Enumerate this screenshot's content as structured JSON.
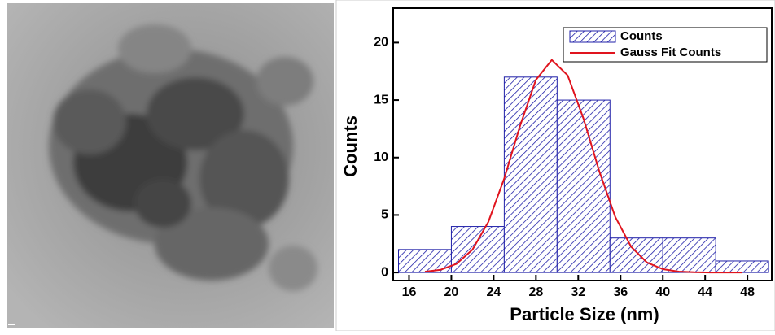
{
  "chart_data": {
    "type": "histogram",
    "bins": [
      15,
      20,
      25,
      30,
      35,
      40,
      45,
      50
    ],
    "series": [
      {
        "name": "Counts",
        "type": "histogram",
        "color": "#1f1fa8",
        "values": [
          2,
          4,
          17,
          15,
          3,
          3,
          1
        ]
      },
      {
        "name": "Gauss Fit Counts",
        "type": "line",
        "color": "#e0141e",
        "x": [
          17.5,
          19,
          20.5,
          22,
          23.5,
          25,
          26.5,
          28,
          29.5,
          31,
          32.5,
          34,
          35.5,
          37,
          38.5,
          40,
          41.5,
          43,
          44.5,
          46,
          47.5
        ],
        "values": [
          0.07,
          0.24,
          0.76,
          1.99,
          4.4,
          8.18,
          12.77,
          16.76,
          18.49,
          17.15,
          13.38,
          8.77,
          4.83,
          2.24,
          0.87,
          0.29,
          0.08,
          0.02,
          0,
          0,
          0
        ]
      }
    ],
    "xlabel": "Particle Size (nm)",
    "ylabel": "Counts",
    "xlim": [
      14.5,
      50.3
    ],
    "ylim": [
      -0.7,
      23
    ],
    "xticks": [
      16,
      20,
      24,
      28,
      32,
      36,
      40,
      44,
      48
    ],
    "yticks": [
      0,
      5,
      10,
      15,
      20
    ],
    "legend": "upper right"
  }
}
